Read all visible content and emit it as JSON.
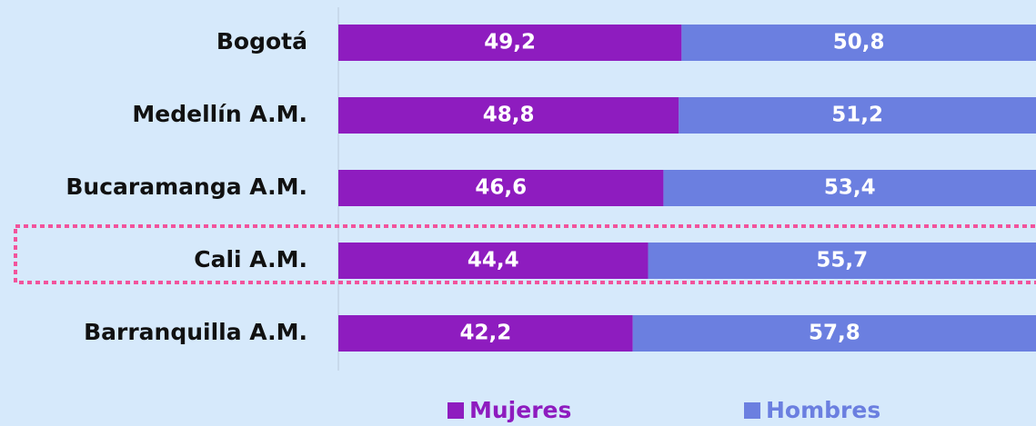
{
  "chart_data": {
    "type": "bar",
    "orientation": "horizontal",
    "stacked": true,
    "categories": [
      "Bogotá",
      "Medellín A.M.",
      "Bucaramanga A.M.",
      "Cali A.M.",
      "Barranquilla A.M."
    ],
    "series": [
      {
        "name": "Mujeres",
        "color": "#8e1cbf",
        "values": [
          49.2,
          48.8,
          46.6,
          44.4,
          42.2
        ],
        "value_labels": [
          "49,2",
          "48,8",
          "46,6",
          "44,4",
          "42,2"
        ]
      },
      {
        "name": "Hombres",
        "color": "#6b7fe0",
        "values": [
          50.8,
          51.2,
          53.4,
          55.7,
          57.8
        ],
        "value_labels": [
          "50,8",
          "51,2",
          "53,4",
          "55,7",
          "57,8"
        ]
      }
    ],
    "xlim": [
      0,
      100
    ]
  }
}
